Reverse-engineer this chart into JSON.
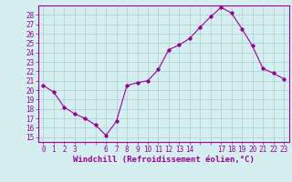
{
  "hours": [
    0,
    1,
    2,
    3,
    4,
    5,
    6,
    7,
    8,
    9,
    10,
    11,
    12,
    13,
    14,
    15,
    16,
    17,
    18,
    19,
    20,
    21,
    22,
    23
  ],
  "values": [
    20.5,
    19.8,
    18.2,
    17.5,
    17.0,
    16.3,
    15.2,
    16.7,
    20.5,
    20.8,
    21.0,
    22.2,
    24.3,
    24.8,
    25.5,
    26.7,
    27.8,
    28.8,
    28.2,
    26.5,
    24.7,
    22.3,
    21.8,
    21.2
  ],
  "line_color": "#990099",
  "marker": "D",
  "marker_size": 1.8,
  "bg_color": "#d5eef0",
  "grid_color": "#aacccc",
  "xlabel": "Windchill (Refroidissement éolien,°C)",
  "xlabel_color": "#990099",
  "xlabel_fontsize": 6.5,
  "yticks": [
    15,
    16,
    17,
    18,
    19,
    20,
    21,
    22,
    23,
    24,
    25,
    26,
    27,
    28
  ],
  "ylim": [
    14.5,
    29.0
  ],
  "xlim": [
    -0.5,
    23.5
  ],
  "tick_color": "#990099",
  "tick_fontsize": 5.5,
  "spine_color": "#990099",
  "shown_xticks": [
    0,
    1,
    2,
    3,
    6,
    7,
    8,
    9,
    10,
    11,
    12,
    13,
    14,
    17,
    18,
    19,
    20,
    21,
    22,
    23
  ]
}
